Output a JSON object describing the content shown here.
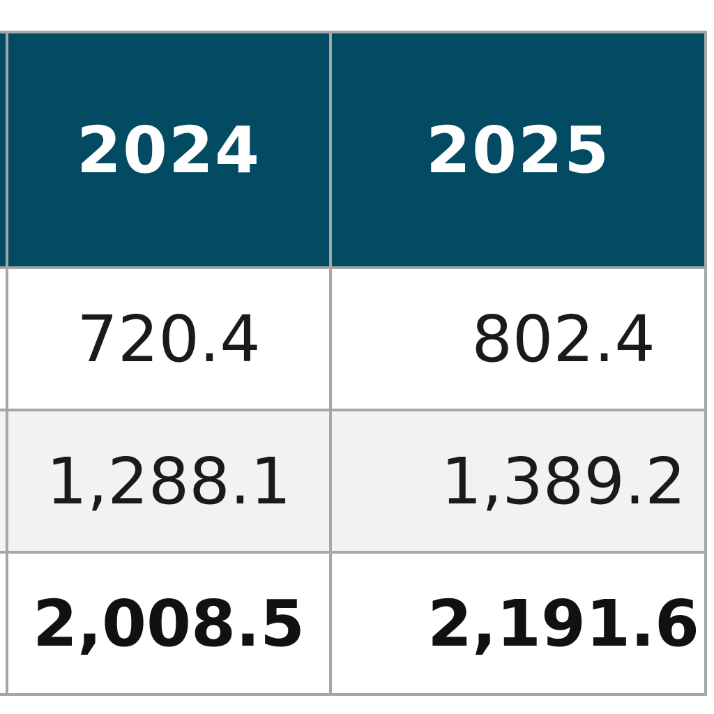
{
  "table": {
    "columns": [
      "",
      "2024",
      "2025"
    ],
    "rows": [
      {
        "label": "",
        "y2024": "720.4",
        "y2025": "802.4"
      },
      {
        "label": "",
        "y2024": "1,288.1",
        "y2025": "1,389.2"
      },
      {
        "label": "",
        "y2024": "2,008.5",
        "y2025": "2,191.6"
      }
    ]
  },
  "colors": {
    "header_bg": "#034a63",
    "header_text": "#ffffff",
    "border": "#a6a6a6",
    "alt_row_bg": "#f2f2f2"
  }
}
